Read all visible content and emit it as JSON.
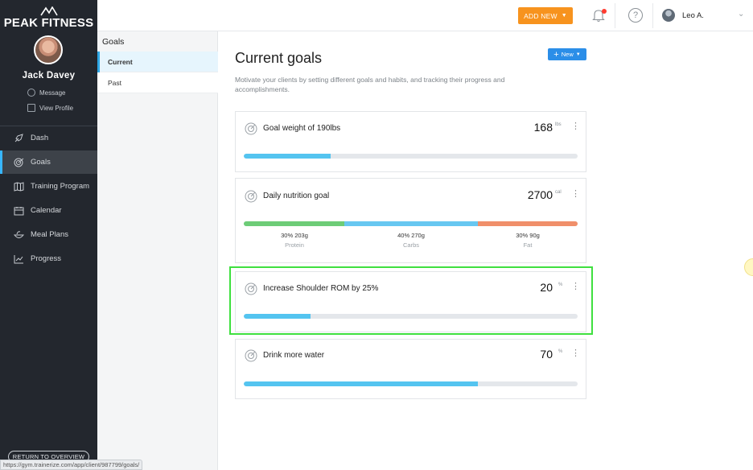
{
  "brand": {
    "name": "PEAK FITNESS"
  },
  "client": {
    "name": "Jack Davey",
    "message_label": "Message",
    "profile_label": "View Profile"
  },
  "nav": {
    "items": [
      {
        "label": "Dash",
        "icon": "rocket-icon"
      },
      {
        "label": "Goals",
        "icon": "target-icon",
        "active": true
      },
      {
        "label": "Training Program",
        "icon": "map-icon"
      },
      {
        "label": "Calendar",
        "icon": "calendar-icon"
      },
      {
        "label": "Meal Plans",
        "icon": "food-bowl-icon"
      },
      {
        "label": "Progress",
        "icon": "chart-icon"
      }
    ],
    "return_label": "RETURN TO OVERVIEW"
  },
  "status_url": "https://gym.trainerize.com/app/client/987799/goals/",
  "topbar": {
    "add_new_label": "ADD NEW",
    "help_label": "?",
    "user_name": "Leo A."
  },
  "subnav": {
    "title": "Goals",
    "items": [
      "Current",
      "Past"
    ]
  },
  "main": {
    "title": "Current goals",
    "new_button_label": "New",
    "description": "Motivate your clients by setting different goals and habits, and tracking their progress and accomplishments."
  },
  "goals": [
    {
      "title": "Goal weight of 190lbs",
      "value": "168",
      "unit": "lbs",
      "progress": 0.26
    },
    {
      "title": "Daily nutrition goal",
      "value": "2700",
      "unit": "cal",
      "macros": [
        {
          "label": "30% 203g",
          "name": "Protein",
          "share": 0.3,
          "color": "#6dcc77"
        },
        {
          "label": "40% 270g",
          "name": "Carbs",
          "share": 0.4,
          "color": "#67c7f1"
        },
        {
          "label": "30% 90g",
          "name": "Fat",
          "share": 0.3,
          "color": "#f08f6a"
        }
      ]
    },
    {
      "title": "Increase Shoulder ROM by 25%",
      "value": "20",
      "unit": "%",
      "progress": 0.2
    },
    {
      "title": "Drink more water",
      "value": "70",
      "unit": "%",
      "progress": 0.7
    }
  ],
  "colors": {
    "accent": "#2b8ee8",
    "orange": "#f7931e",
    "progress": "#54c4f0",
    "sidebar": "#23272e"
  }
}
